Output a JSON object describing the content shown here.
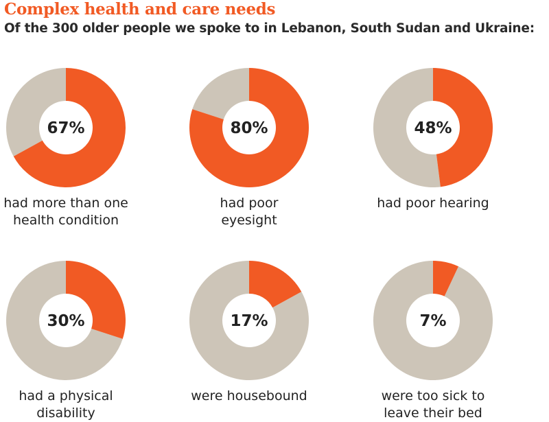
{
  "title": "Complex health and care needs",
  "subtitle": "Of the 300 older people we spoke to in Lebanon, South Sudan and Ukraine:",
  "chart_data": {
    "type": "pie",
    "variant": "donut",
    "colors": {
      "highlight": "#f15a24",
      "remainder": "#cdc5b8"
    },
    "charts": [
      {
        "value": 67,
        "label_text": "67%",
        "caption": [
          "had more than one",
          "health condition"
        ]
      },
      {
        "value": 80,
        "label_text": "80%",
        "caption": [
          "had poor",
          "eyesight"
        ]
      },
      {
        "value": 48,
        "label_text": "48%",
        "caption": [
          "had poor hearing"
        ]
      },
      {
        "value": 30,
        "label_text": "30%",
        "caption": [
          "had a physical",
          "disability"
        ]
      },
      {
        "value": 17,
        "label_text": "17%",
        "caption": [
          "were housebound"
        ]
      },
      {
        "value": 7,
        "label_text": "7%",
        "caption": [
          "were too sick to",
          "leave their bed"
        ]
      }
    ]
  }
}
